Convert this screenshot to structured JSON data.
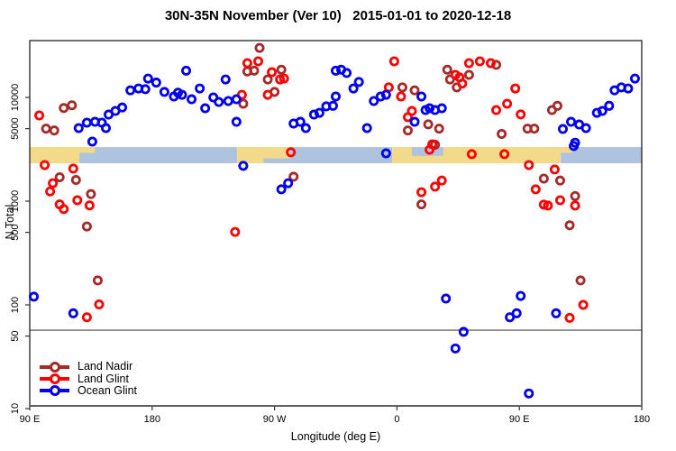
{
  "chart_data": {
    "type": "scatter",
    "title": "30N-35N November (Ver 10)   2015-01-01 to 2020-12-18",
    "xlabel": "Longitude (deg E)",
    "ylabel": "N Total",
    "xlim": [
      90,
      540
    ],
    "ylim": [
      10,
      35000
    ],
    "y_scale": "log10",
    "grid": false,
    "xticks": [
      {
        "value": 90,
        "label": "90 E"
      },
      {
        "value": 180,
        "label": "180"
      },
      {
        "value": 270,
        "label": "90 W"
      },
      {
        "value": 360,
        "label": "0"
      },
      {
        "value": 450,
        "label": "90 E"
      },
      {
        "value": 540,
        "label": "180"
      }
    ],
    "yticks": [
      {
        "value": 10000,
        "label": "10000"
      },
      {
        "value": 5000,
        "label": "5000"
      },
      {
        "value": 1000,
        "label": "1000"
      },
      {
        "value": 500,
        "label": "500"
      },
      {
        "value": 100,
        "label": "100"
      },
      {
        "value": 50,
        "label": "50"
      },
      {
        "value": 10,
        "label": "10"
      }
    ],
    "threshold_line_n": 57,
    "land_ocean_band": {
      "description": "map strip of the 30N-35N latitude belt: yellow=land, blue=ocean",
      "n_top": 3320,
      "n_bottom": 2320,
      "land_color": "#F3D98A",
      "ocean_color": "#AEC3DE",
      "segments": [
        {
          "type": "land",
          "from": 90,
          "to": 126.5
        },
        {
          "type": "ocean",
          "from": 126.5,
          "to": 242.5
        },
        {
          "type": "land",
          "from": 242.5,
          "to": 281.5
        },
        {
          "type": "ocean",
          "from": 281.5,
          "to": 356.5
        },
        {
          "type": "land",
          "from": 356.5,
          "to": 480.5
        },
        {
          "type": "ocean",
          "from": 480.5,
          "to": 540
        }
      ],
      "overlays": [
        {
          "type": "land",
          "from": 126.5,
          "to": 138,
          "pos": "top",
          "frac": 0.35
        },
        {
          "type": "ocean",
          "from": 262,
          "to": 281.5,
          "pos": "bottom",
          "frac": 0.3
        },
        {
          "type": "ocean",
          "from": 371,
          "to": 394,
          "pos": "top",
          "frac": 0.55
        },
        {
          "type": "land",
          "from": 480.5,
          "to": 489,
          "pos": "top",
          "frac": 0.35
        }
      ]
    },
    "series": [
      {
        "name": "Land Nadir",
        "id": "land-nadir",
        "color": "#A52A2A",
        "points": [
          [
            102,
            5000
          ],
          [
            108,
            4800
          ],
          [
            115,
            7900
          ],
          [
            121,
            8400
          ],
          [
            112,
            1700
          ],
          [
            124,
            1600
          ],
          [
            135,
            1170
          ],
          [
            132,
            570
          ],
          [
            140,
            172
          ],
          [
            259,
            30000
          ],
          [
            250,
            17800
          ],
          [
            255,
            18100
          ],
          [
            275,
            18500
          ],
          [
            265,
            14900
          ],
          [
            270,
            11300
          ],
          [
            247,
            8700
          ],
          [
            284,
            1720
          ],
          [
            364,
            12500
          ],
          [
            373,
            11700
          ],
          [
            397,
            18500
          ],
          [
            399,
            14900
          ],
          [
            404,
            12500
          ],
          [
            413,
            16500
          ],
          [
            383,
            5500
          ],
          [
            368,
            4800
          ],
          [
            391,
            5000
          ],
          [
            388,
            3500
          ],
          [
            378,
            930
          ],
          [
            433,
            20600
          ],
          [
            474,
            7550
          ],
          [
            478,
            8300
          ],
          [
            456,
            5000
          ],
          [
            461,
            5000
          ],
          [
            437,
            4450
          ],
          [
            468,
            1650
          ],
          [
            480,
            1580
          ],
          [
            491,
            1120
          ],
          [
            487,
            585
          ],
          [
            495,
            172
          ]
        ]
      },
      {
        "name": "Land Glint",
        "id": "land-glint",
        "color": "#FF0000",
        "points": [
          [
            97,
            6700
          ],
          [
            101,
            2230
          ],
          [
            122,
            2060
          ],
          [
            107,
            1490
          ],
          [
            105,
            1240
          ],
          [
            112,
            930
          ],
          [
            115,
            840
          ],
          [
            125,
            1020
          ],
          [
            134,
            910
          ],
          [
            141,
            101
          ],
          [
            132,
            76
          ],
          [
            241,
            505
          ],
          [
            282,
            2960
          ],
          [
            250,
            21400
          ],
          [
            258,
            22300
          ],
          [
            268,
            17500
          ],
          [
            274,
            14900
          ],
          [
            277,
            15200
          ],
          [
            246,
            10600
          ],
          [
            265,
            10600
          ],
          [
            358,
            22300
          ],
          [
            354,
            12500
          ],
          [
            363,
            10200
          ],
          [
            371,
            7400
          ],
          [
            368,
            6450
          ],
          [
            386,
            3530
          ],
          [
            384,
            3130
          ],
          [
            378,
            1220
          ],
          [
            388,
            1380
          ],
          [
            393,
            1580
          ],
          [
            413,
            21400
          ],
          [
            421,
            22300
          ],
          [
            429,
            21400
          ],
          [
            403,
            16500
          ],
          [
            406,
            15600
          ],
          [
            408,
            13600
          ],
          [
            447,
            12200
          ],
          [
            433,
            7550
          ],
          [
            441,
            8700
          ],
          [
            451,
            6850
          ],
          [
            439,
            2840
          ],
          [
            415,
            2840
          ],
          [
            457,
            2230
          ],
          [
            476,
            2020
          ],
          [
            462,
            1300
          ],
          [
            480,
            1020
          ],
          [
            491,
            907
          ],
          [
            468,
            926
          ],
          [
            471,
            907
          ],
          [
            487,
            75
          ],
          [
            497,
            100
          ]
        ]
      },
      {
        "name": "Ocean Glint",
        "id": "ocean-glint",
        "color": "#0000EE",
        "points": [
          [
            126,
            5060
          ],
          [
            132,
            5710
          ],
          [
            138,
            5820
          ],
          [
            143,
            5710
          ],
          [
            146,
            5060
          ],
          [
            136,
            3750
          ],
          [
            148,
            6830
          ],
          [
            153,
            7400
          ],
          [
            158,
            8000
          ],
          [
            164,
            11700
          ],
          [
            170,
            12200
          ],
          [
            175,
            12000
          ],
          [
            177,
            15200
          ],
          [
            183,
            13900
          ],
          [
            189,
            11300
          ],
          [
            196,
            10200
          ],
          [
            199,
            11100
          ],
          [
            205,
            18100
          ],
          [
            234,
            14900
          ],
          [
            202,
            10600
          ],
          [
            215,
            12200
          ],
          [
            209,
            9600
          ],
          [
            225,
            10000
          ],
          [
            229,
            9040
          ],
          [
            219,
            7860
          ],
          [
            236,
            9230
          ],
          [
            242,
            9600
          ],
          [
            242,
            5820
          ],
          [
            247,
            2190
          ],
          [
            275,
            1300
          ],
          [
            280,
            1490
          ],
          [
            284,
            5600
          ],
          [
            289,
            5820
          ],
          [
            293,
            5060
          ],
          [
            299,
            6830
          ],
          [
            303,
            7100
          ],
          [
            308,
            8200
          ],
          [
            315,
            18100
          ],
          [
            319,
            18500
          ],
          [
            323,
            17200
          ],
          [
            332,
            14100
          ],
          [
            328,
            12200
          ],
          [
            315,
            10200
          ],
          [
            313,
            8300
          ],
          [
            343,
            9230
          ],
          [
            348,
            10200
          ],
          [
            352,
            10600
          ],
          [
            338,
            5060
          ],
          [
            352,
            2890
          ],
          [
            378,
            10200
          ],
          [
            381,
            7550
          ],
          [
            384,
            7860
          ],
          [
            388,
            7550
          ],
          [
            393,
            7860
          ],
          [
            373,
            5820
          ],
          [
            490,
            3400
          ],
          [
            482,
            4960
          ],
          [
            488,
            5820
          ],
          [
            494,
            5480
          ],
          [
            499,
            5060
          ],
          [
            507,
            7100
          ],
          [
            511,
            7400
          ],
          [
            516,
            8300
          ],
          [
            520,
            11700
          ],
          [
            525,
            12500
          ],
          [
            530,
            12200
          ],
          [
            535,
            15200
          ],
          [
            491,
            3660
          ],
          [
            93,
            120
          ],
          [
            122,
            83
          ],
          [
            396,
            115
          ],
          [
            409,
            55
          ],
          [
            403,
            38
          ],
          [
            443,
            76
          ],
          [
            448,
            83
          ],
          [
            451,
            122
          ],
          [
            477,
            83
          ],
          [
            457,
            14
          ]
        ]
      }
    ],
    "legend": {
      "position": "bottom-left"
    }
  }
}
